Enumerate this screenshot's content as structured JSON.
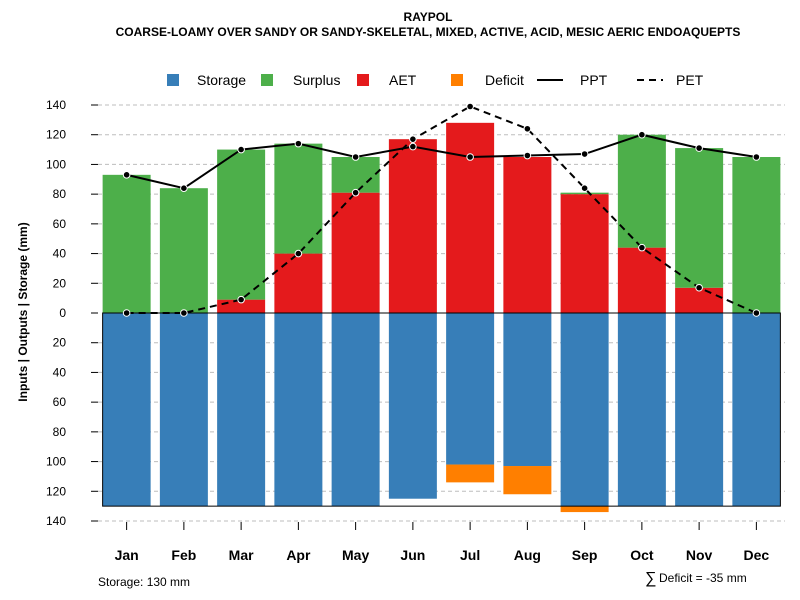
{
  "chart_data": {
    "type": "bar",
    "title": "RAYPOL",
    "subtitle": "COARSE-LOAMY OVER SANDY OR SANDY-SKELETAL, MIXED, ACTIVE, ACID, MESIC AERIC ENDOAQUEPTS",
    "ylabel": "Inputs | Outputs | Storage    (mm)",
    "ylim": [
      -140,
      140
    ],
    "yticks": [
      140,
      120,
      100,
      80,
      60,
      40,
      20,
      0,
      -20,
      -40,
      -60,
      -80,
      -100,
      -120,
      -140
    ],
    "ytick_labels": [
      "140",
      "120",
      "100",
      "80",
      "60",
      "40",
      "20",
      "0",
      "20",
      "40",
      "60",
      "80",
      "100",
      "120",
      "140"
    ],
    "categories": [
      "Jan",
      "Feb",
      "Mar",
      "Apr",
      "May",
      "Jun",
      "Jul",
      "Aug",
      "Sep",
      "Oct",
      "Nov",
      "Dec"
    ],
    "legend": [
      {
        "label": "Storage",
        "kind": "box",
        "color": "#377EB8"
      },
      {
        "label": "Surplus",
        "kind": "box",
        "color": "#4DAF4A"
      },
      {
        "label": "AET",
        "kind": "box",
        "color": "#E41A1C"
      },
      {
        "label": "Deficit",
        "kind": "box",
        "color": "#FF7F00"
      },
      {
        "label": "PPT",
        "kind": "solid",
        "color": "#000000"
      },
      {
        "label": "PET",
        "kind": "dashed",
        "color": "#000000"
      }
    ],
    "series": [
      {
        "name": "AET",
        "color": "#E41A1C",
        "values": [
          0,
          0,
          9,
          40,
          81,
          117,
          128,
          105,
          80,
          44,
          17,
          0
        ]
      },
      {
        "name": "Surplus",
        "color": "#4DAF4A",
        "values": [
          93,
          84,
          101,
          74,
          24,
          0,
          0,
          0,
          1,
          76,
          94,
          105
        ]
      },
      {
        "name": "Storage",
        "color": "#377EB8",
        "values": [
          130,
          130,
          130,
          130,
          130,
          125,
          102,
          103,
          130,
          130,
          130,
          130
        ]
      },
      {
        "name": "Deficit",
        "color": "#FF7F00",
        "values": [
          0,
          0,
          0,
          0,
          0,
          0,
          12,
          19,
          4,
          0,
          0,
          0
        ]
      },
      {
        "name": "PPT",
        "color": "#000000",
        "values": [
          93,
          84,
          110,
          114,
          105,
          112,
          105,
          106,
          107,
          120,
          111,
          105
        ]
      },
      {
        "name": "PET",
        "color": "#000000",
        "values": [
          0,
          0,
          9,
          40,
          81,
          117,
          139,
          124,
          84,
          44,
          17,
          0
        ]
      }
    ],
    "storage_capacity": 130,
    "annotations": {
      "storage": "Storage: 130 mm",
      "deficit_symbol": "∑",
      "deficit": "Deficit = -35 mm"
    }
  }
}
